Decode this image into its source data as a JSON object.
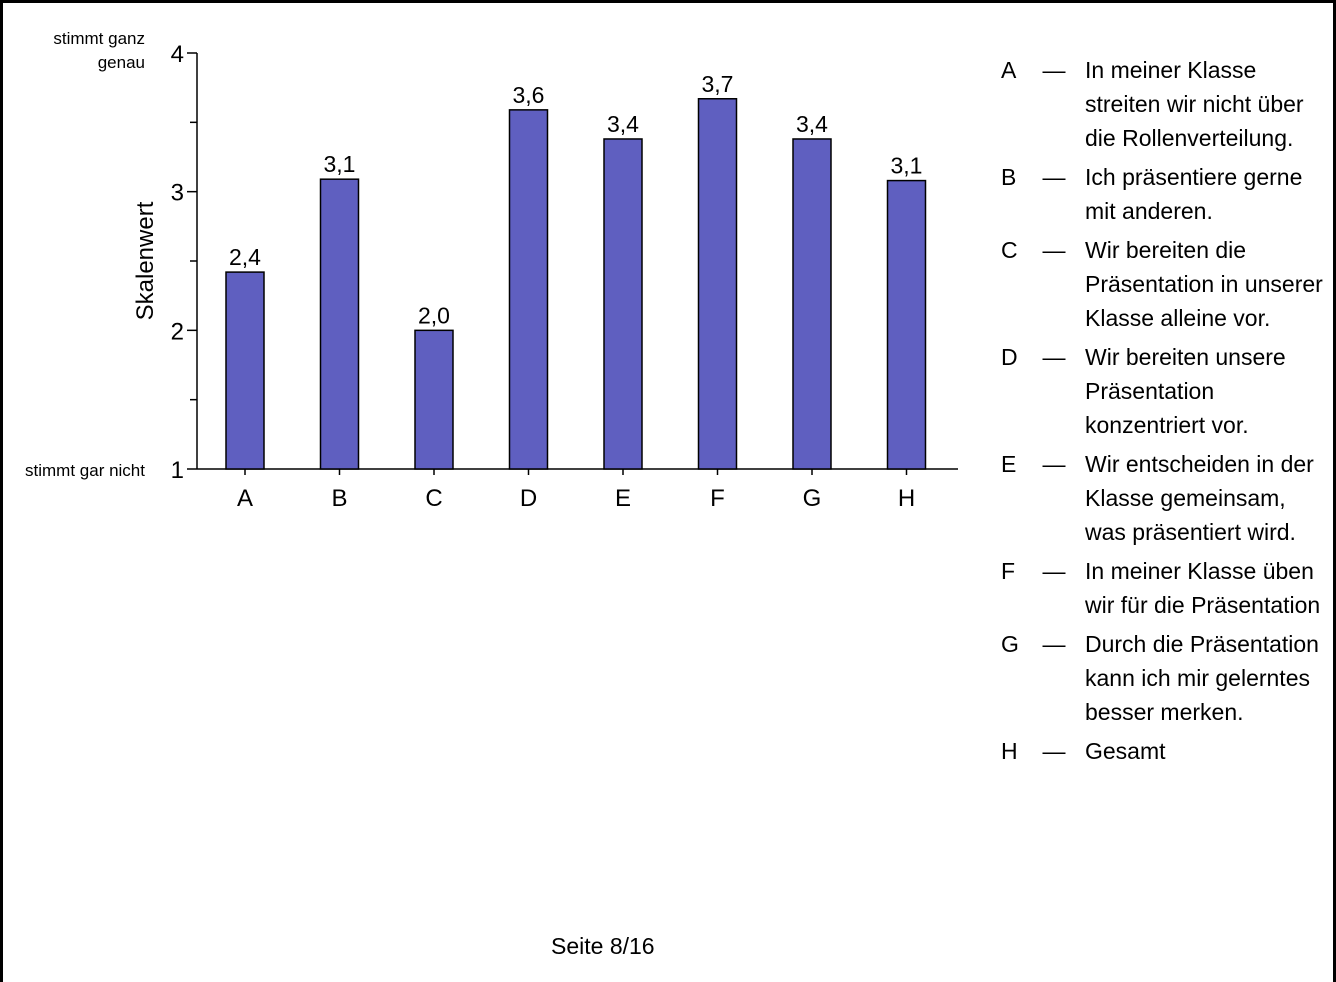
{
  "chart_data": {
    "type": "bar",
    "ylabel": "Skalenwert",
    "ylim": [
      1,
      4
    ],
    "yticks": [
      "1",
      "2",
      "3",
      "4"
    ],
    "scale_top_label": "stimmt ganz genau",
    "scale_bottom_label": "stimmt gar nicht",
    "categories": [
      "A",
      "B",
      "C",
      "D",
      "E",
      "F",
      "G",
      "H"
    ],
    "values": [
      2.42,
      3.09,
      2.0,
      3.59,
      3.38,
      3.67,
      3.38,
      3.08
    ],
    "value_labels": [
      "2,4",
      "3,1",
      "2,0",
      "3,6",
      "3,4",
      "3,7",
      "3,4",
      "3,1"
    ],
    "bar_color": "#5f5fc0",
    "grid": false
  },
  "legend": [
    {
      "key": "A",
      "dash": "—",
      "text": "In meiner Klasse streiten wir nicht über die Rollenverteilung."
    },
    {
      "key": "B",
      "dash": "—",
      "text": "Ich präsentiere gerne mit anderen."
    },
    {
      "key": "C",
      "dash": "—",
      "text": "Wir bereiten die Präsentation in unserer Klasse alleine vor."
    },
    {
      "key": "D",
      "dash": "—",
      "text": "Wir bereiten unsere Präsentation konzentriert vor."
    },
    {
      "key": "E",
      "dash": "—",
      "text": "Wir entscheiden in der Klasse gemeinsam, was präsentiert wird."
    },
    {
      "key": "F",
      "dash": "—",
      "text": "In meiner Klasse üben wir für die Präsentation"
    },
    {
      "key": "G",
      "dash": "—",
      "text": "Durch die Präsentation kann ich mir gelerntes besser merken."
    },
    {
      "key": "H",
      "dash": "—",
      "text": "Gesamt"
    }
  ],
  "footer": {
    "page": "Seite 8/16"
  }
}
